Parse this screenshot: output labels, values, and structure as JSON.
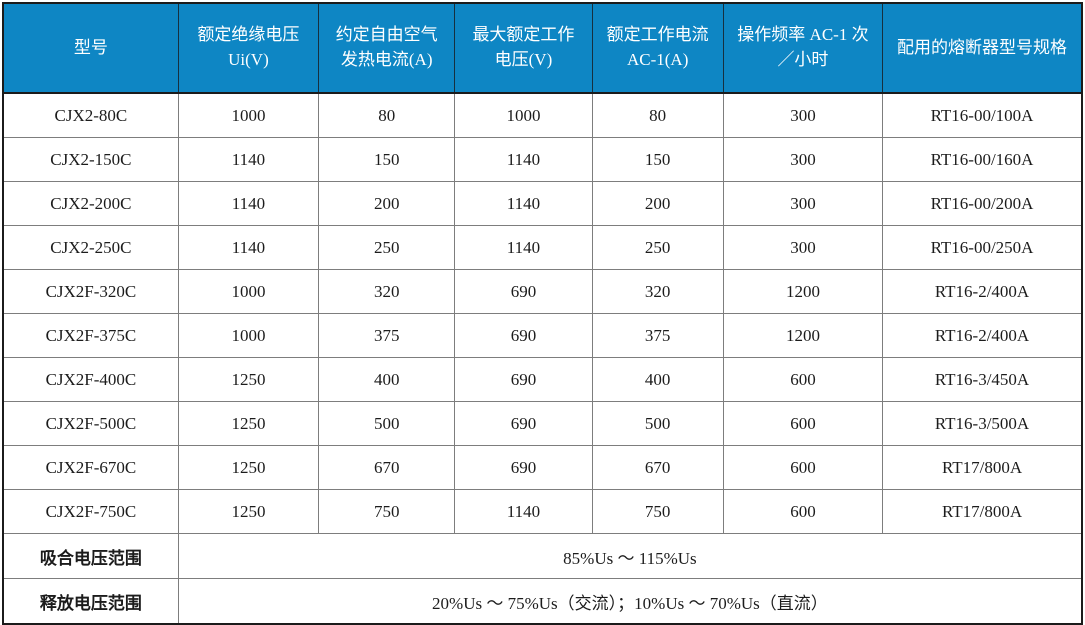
{
  "colors": {
    "header_background": "#0e86c4",
    "header_text": "#ffffff",
    "outer_border": "#1b1b1b",
    "grid_border": "#7d7d7d",
    "body_text": "#1c1c1c"
  },
  "table": {
    "headers": [
      "型号",
      "额定绝缘电压 Ui(V)",
      "约定自由空气发热电流(A)",
      "最大额定工作电压(V)",
      "额定工作电流 AC-1(A)",
      "操作频率 AC-1 次／小时",
      "配用的熔断器型号规格"
    ],
    "rows": [
      [
        "CJX2-80C",
        "1000",
        "80",
        "1000",
        "80",
        "300",
        "RT16-00/100A"
      ],
      [
        "CJX2-150C",
        "1140",
        "150",
        "1140",
        "150",
        "300",
        "RT16-00/160A"
      ],
      [
        "CJX2-200C",
        "1140",
        "200",
        "1140",
        "200",
        "300",
        "RT16-00/200A"
      ],
      [
        "CJX2-250C",
        "1140",
        "250",
        "1140",
        "250",
        "300",
        "RT16-00/250A"
      ],
      [
        "CJX2F-320C",
        "1000",
        "320",
        "690",
        "320",
        "1200",
        "RT16-2/400A"
      ],
      [
        "CJX2F-375C",
        "1000",
        "375",
        "690",
        "375",
        "1200",
        "RT16-2/400A"
      ],
      [
        "CJX2F-400C",
        "1250",
        "400",
        "690",
        "400",
        "600",
        "RT16-3/450A"
      ],
      [
        "CJX2F-500C",
        "1250",
        "500",
        "690",
        "500",
        "600",
        "RT16-3/500A"
      ],
      [
        "CJX2F-670C",
        "1250",
        "670",
        "690",
        "670",
        "600",
        "RT17/800A"
      ],
      [
        "CJX2F-750C",
        "1250",
        "750",
        "1140",
        "750",
        "600",
        "RT17/800A"
      ]
    ],
    "footer_rows": [
      {
        "label": "吸合电压范围",
        "value": "85%Us ～ 115%Us"
      },
      {
        "label": "释放电压范围",
        "value": "20%Us ～ 75%Us（交流）；10%Us ～ 70%Us（直流）"
      }
    ]
  }
}
